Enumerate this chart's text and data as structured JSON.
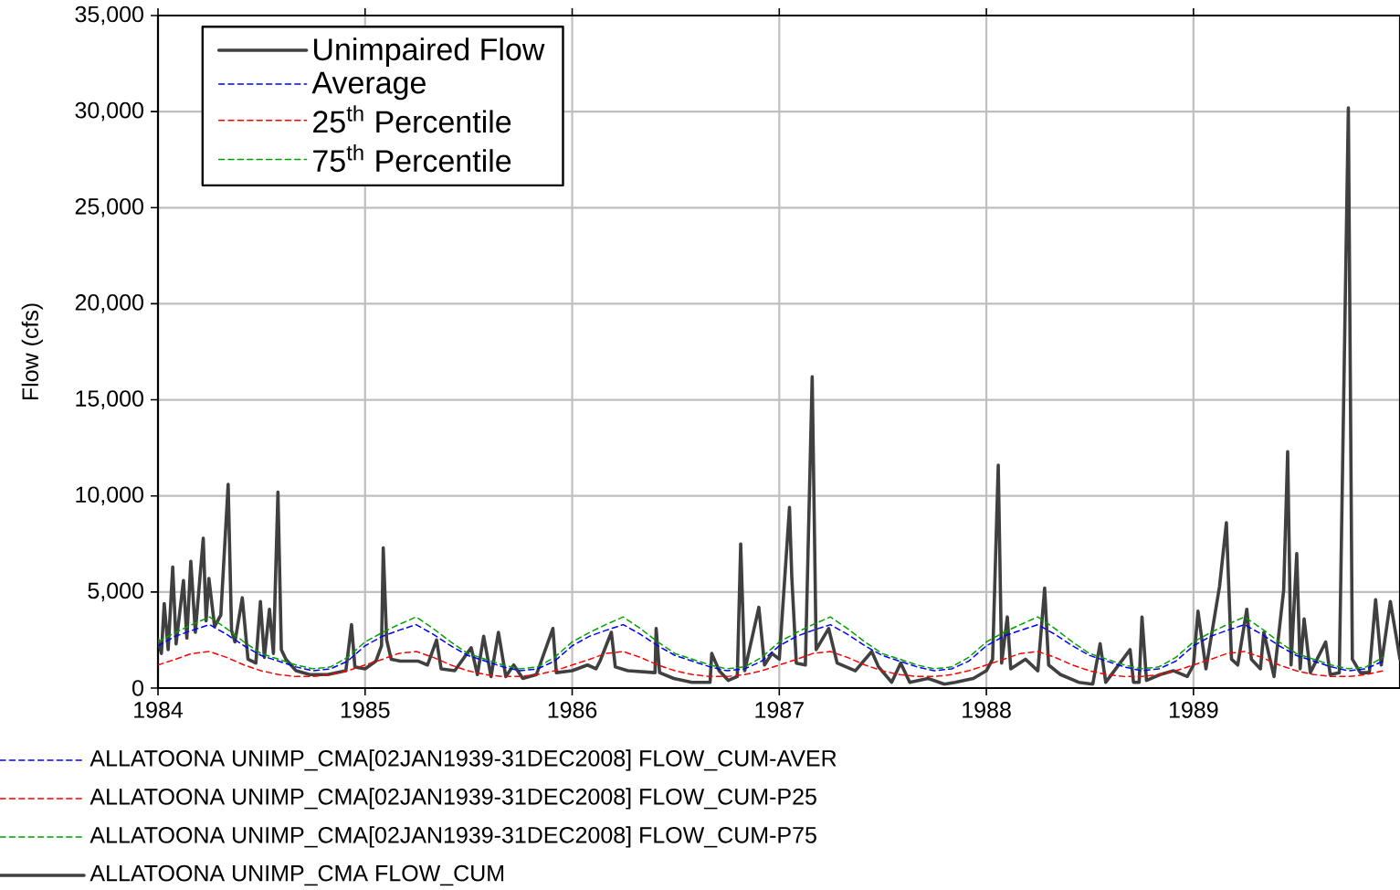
{
  "chart_data": {
    "type": "line",
    "ylabel": "Flow (cfs)",
    "x": [
      "1984-01",
      "1984-02",
      "1984-03",
      "1984-04",
      "1984-05",
      "1984-06",
      "1984-07",
      "1984-08",
      "1984-09",
      "1984-10",
      "1984-11",
      "1984-12",
      "1985-01",
      "1985-02",
      "1985-03",
      "1985-04",
      "1985-05",
      "1985-06",
      "1985-07",
      "1985-08",
      "1985-09",
      "1985-10",
      "1985-11",
      "1985-12",
      "1986-01",
      "1986-02",
      "1986-03",
      "1986-04",
      "1986-05",
      "1986-06",
      "1986-07",
      "1986-08",
      "1986-09",
      "1986-10",
      "1986-11",
      "1986-12",
      "1987-01",
      "1987-02",
      "1987-03",
      "1987-04",
      "1987-05",
      "1987-06",
      "1987-07",
      "1987-08",
      "1987-09",
      "1987-10",
      "1987-11",
      "1987-12",
      "1988-01",
      "1988-02",
      "1988-03",
      "1988-04",
      "1988-05",
      "1988-06",
      "1988-07",
      "1988-08",
      "1988-09",
      "1988-10",
      "1988-11",
      "1988-12",
      "1989-01",
      "1989-02",
      "1989-03",
      "1989-04",
      "1989-05",
      "1989-06",
      "1989-07",
      "1989-08",
      "1989-09",
      "1989-10",
      "1989-11",
      "1989-12"
    ],
    "series": [
      {
        "name": "Unimpaired Flow",
        "color": "#404040",
        "line_style": "solid",
        "x": [
          "1984-01-01",
          "1984-01-07",
          "1984-01-12",
          "1984-01-19",
          "1984-01-27",
          "1984-02-02",
          "1984-02-15",
          "1984-02-21",
          "1984-02-28",
          "1984-03-07",
          "1984-03-21",
          "1984-03-26",
          "1984-03-31",
          "1984-04-10",
          "1984-04-21",
          "1984-05-04",
          "1984-05-10",
          "1984-05-16",
          "1984-05-29",
          "1984-06-08",
          "1984-06-22",
          "1984-06-30",
          "1984-07-07",
          "1984-07-16",
          "1984-07-23",
          "1984-07-31",
          "1984-08-06",
          "1984-08-14",
          "1984-09-01",
          "1984-09-25",
          "1984-10-27",
          "1984-11-28",
          "1984-12-08",
          "1984-12-14",
          "1985-01-01",
          "1985-01-20",
          "1985-01-30",
          "1985-02-02",
          "1985-02-08",
          "1985-02-16",
          "1985-03-04",
          "1985-04-05",
          "1985-04-21",
          "1985-05-07",
          "1985-05-15",
          "1985-06-08",
          "1985-07-07",
          "1985-07-18",
          "1985-07-29",
          "1985-08-11",
          "1985-08-24",
          "1985-09-06",
          "1985-09-20",
          "1985-10-06",
          "1985-10-30",
          "1985-11-28",
          "1985-12-04",
          "1986-01-01",
          "1986-01-28",
          "1986-02-12",
          "1986-02-19",
          "1986-03-11",
          "1986-03-18",
          "1986-04-09",
          "1986-05-27",
          "1986-05-29",
          "1986-06-04",
          "1986-06-29",
          "1986-07-31",
          "1986-09-01",
          "1986-09-04",
          "1986-09-17",
          "1986-10-03",
          "1986-10-19",
          "1986-10-25",
          "1986-11-01",
          "1986-11-26",
          "1986-12-06",
          "1986-12-19",
          "1987-01-01",
          "1987-01-19",
          "1987-01-23",
          "1987-01-31",
          "1987-02-16",
          "1987-02-28",
          "1987-03-07",
          "1987-03-29",
          "1987-04-13",
          "1987-05-15",
          "1987-06-13",
          "1987-06-25",
          "1987-07-18",
          "1987-08-03",
          "1987-08-19",
          "1987-09-20",
          "1987-10-19",
          "1987-11-07",
          "1987-12-09",
          "1988-01-01",
          "1988-01-12",
          "1988-01-22",
          "1988-01-28",
          "1988-02-07",
          "1988-02-13",
          "1988-03-10",
          "1988-04-01",
          "1988-04-13",
          "1988-04-20",
          "1988-05-11",
          "1988-06-12",
          "1988-07-07",
          "1988-07-20",
          "1988-07-30",
          "1988-09-11",
          "1988-09-17",
          "1988-09-27",
          "1988-10-02",
          "1988-10-10",
          "1988-11-03",
          "1988-11-27",
          "1988-12-21",
          "1989-01-01",
          "1989-01-09",
          "1989-01-23",
          "1989-02-16",
          "1989-02-28",
          "1989-03-09",
          "1989-03-20",
          "1989-04-05",
          "1989-04-13",
          "1989-04-29",
          "1989-05-05",
          "1989-05-23",
          "1989-06-09",
          "1989-06-16",
          "1989-06-22",
          "1989-07-02",
          "1989-07-08",
          "1989-07-15",
          "1989-07-26",
          "1989-08-22",
          "1989-08-30",
          "1989-09-15",
          "1989-10-01",
          "1989-10-08",
          "1989-10-22",
          "1989-11-07",
          "1989-11-18",
          "1989-11-28",
          "1989-12-14",
          "1989-12-31"
        ],
        "values": [
          2500,
          1800,
          4400,
          2000,
          6300,
          2300,
          5600,
          2600,
          6600,
          2900,
          7800,
          3500,
          5700,
          3200,
          3800,
          10600,
          3000,
          2400,
          4700,
          1500,
          1300,
          4500,
          1600,
          4100,
          1800,
          10200,
          2000,
          1500,
          900,
          700,
          700,
          900,
          3300,
          1100,
          1000,
          1400,
          2200,
          7300,
          2500,
          1500,
          1400,
          1400,
          1200,
          2500,
          1000,
          900,
          2100,
          700,
          2700,
          600,
          2900,
          600,
          1200,
          500,
          700,
          3100,
          800,
          900,
          1200,
          1000,
          1400,
          2900,
          1100,
          900,
          800,
          3100,
          800,
          500,
          300,
          300,
          1800,
          900,
          400,
          600,
          7500,
          900,
          4200,
          1200,
          1800,
          1500,
          9400,
          5800,
          1300,
          1200,
          16200,
          2000,
          3100,
          1300,
          900,
          1900,
          1100,
          300,
          1300,
          300,
          500,
          200,
          300,
          500,
          900,
          1500,
          11600,
          1300,
          3700,
          1000,
          1500,
          900,
          5200,
          1200,
          700,
          300,
          200,
          2300,
          300,
          2000,
          300,
          300,
          3700,
          400,
          700,
          900,
          600,
          1200,
          4000,
          1000,
          5300,
          8600,
          1500,
          1200,
          4100,
          1500,
          1000,
          2900,
          600,
          5100,
          12300,
          1200,
          7000,
          1000,
          3600,
          800,
          2400,
          700,
          800,
          30200,
          1500,
          800,
          800,
          4600,
          1200,
          4500,
          1500
        ]
      },
      {
        "name": "Average",
        "color": "#0000ff",
        "line_style": "dashed",
        "values": [
          2200,
          2700,
          3000,
          3300,
          2800,
          2200,
          1700,
          1400,
          1100,
          900,
          1000,
          1400,
          2200,
          2700,
          3000,
          3300,
          2800,
          2200,
          1700,
          1400,
          1100,
          900,
          1000,
          1400,
          2200,
          2700,
          3000,
          3300,
          2800,
          2200,
          1700,
          1400,
          1100,
          900,
          1000,
          1400,
          2200,
          2700,
          3000,
          3300,
          2800,
          2200,
          1700,
          1400,
          1100,
          900,
          1000,
          1400,
          2200,
          2700,
          3000,
          3300,
          2800,
          2200,
          1700,
          1400,
          1100,
          900,
          1000,
          1400,
          2200,
          2700,
          3000,
          3300,
          2800,
          2200,
          1700,
          1400,
          1100,
          900,
          1000,
          1400
        ]
      },
      {
        "name": "25$^{th}$ Percentile",
        "color": "#ff0000",
        "line_style": "dashed",
        "values": [
          1200,
          1500,
          1800,
          1900,
          1600,
          1200,
          900,
          700,
          600,
          600,
          700,
          900,
          1200,
          1500,
          1800,
          1900,
          1600,
          1200,
          900,
          700,
          600,
          600,
          700,
          900,
          1200,
          1500,
          1800,
          1900,
          1600,
          1200,
          900,
          700,
          600,
          600,
          700,
          900,
          1200,
          1500,
          1800,
          1900,
          1600,
          1200,
          900,
          700,
          600,
          600,
          700,
          900,
          1200,
          1500,
          1800,
          1900,
          1600,
          1200,
          900,
          700,
          600,
          600,
          700,
          900,
          1200,
          1500,
          1800,
          1900,
          1600,
          1200,
          900,
          700,
          600,
          600,
          700,
          900
        ]
      },
      {
        "name": "75$^{th}$ Percentile",
        "color": "#00a000",
        "line_style": "dashed",
        "values": [
          2400,
          2900,
          3300,
          3700,
          3100,
          2400,
          1800,
          1500,
          1200,
          1000,
          1100,
          1600,
          2400,
          2900,
          3300,
          3700,
          3100,
          2400,
          1800,
          1500,
          1200,
          1000,
          1100,
          1600,
          2400,
          2900,
          3300,
          3700,
          3100,
          2400,
          1800,
          1500,
          1200,
          1000,
          1100,
          1600,
          2400,
          2900,
          3300,
          3700,
          3100,
          2400,
          1800,
          1500,
          1200,
          1000,
          1100,
          1600,
          2400,
          2900,
          3300,
          3700,
          3100,
          2400,
          1800,
          1500,
          1200,
          1000,
          1100,
          1600,
          2400,
          2900,
          3300,
          3700,
          3100,
          2400,
          1800,
          1500,
          1200,
          1000,
          1100,
          1600
        ]
      }
    ],
    "xlim": [
      "1984-01-01",
      "1989-12-31"
    ],
    "xticks": [
      {
        "value": "1984-01-01",
        "label": "1984"
      },
      {
        "value": "1985-01-01",
        "label": "1985"
      },
      {
        "value": "1986-01-01",
        "label": "1986"
      },
      {
        "value": "1987-01-01",
        "label": "1987"
      },
      {
        "value": "1988-01-01",
        "label": "1988"
      },
      {
        "value": "1989-01-01",
        "label": "1989"
      }
    ],
    "ylim": [
      0,
      35000
    ],
    "yticks": [
      0,
      {
        "value": 5000,
        "label": "5,000"
      },
      {
        "value": 10000,
        "label": "10,000"
      },
      {
        "value": 15000,
        "label": "15,000"
      },
      {
        "value": 20000,
        "label": "20,000"
      },
      {
        "value": 25000,
        "label": "25,000"
      },
      {
        "value": 30000,
        "label": "30,000"
      },
      {
        "value": 35000,
        "label": "35,000"
      }
    ],
    "grid": true,
    "legend": "top left",
    "annotations": [
      "ALLATOONA UNIMP_CMA[02JAN1939-31DEC2008] FLOW_CUM-AVER",
      "ALLATOONA UNIMP_CMA[02JAN1939-31DEC2008] FLOW_CUM-P25",
      "ALLATOONA UNIMP_CMA[02JAN1939-31DEC2008] FLOW_CUM-P75",
      "ALLATOONA UNIMP_CMA FLOW_CUM"
    ]
  }
}
